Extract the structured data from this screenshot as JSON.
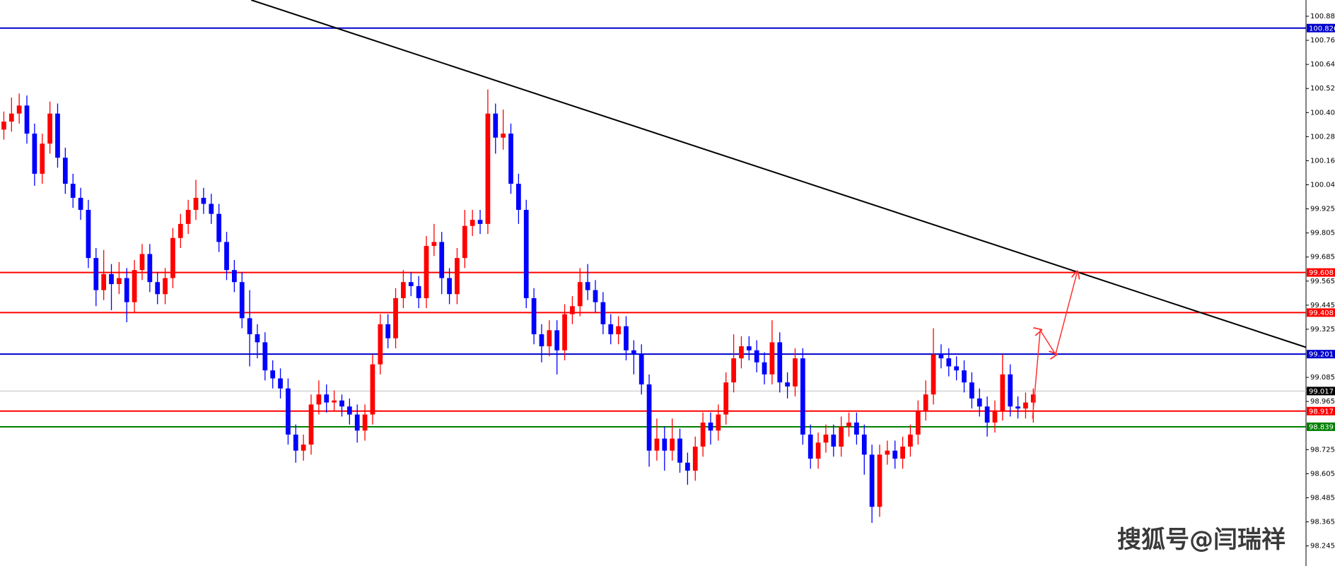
{
  "chart_data": {
    "type": "candlestick",
    "xlim": [
      0,
      170
    ],
    "ylim": [
      98.145,
      100.966
    ],
    "yticks": [
      100.885,
      100.765,
      100.645,
      100.525,
      100.405,
      100.285,
      100.165,
      100.045,
      99.925,
      99.805,
      99.685,
      99.565,
      99.445,
      99.325,
      99.085,
      98.965,
      98.725,
      98.605,
      98.485,
      98.365,
      98.245
    ],
    "up_color": "#ff0000",
    "down_color": "#0000ff",
    "open": [
      100.32,
      100.36,
      100.4,
      100.44,
      100.3,
      100.1,
      100.25,
      100.4,
      100.18,
      100.05,
      99.98,
      99.92,
      99.68,
      99.52,
      99.6,
      99.55,
      99.58,
      99.46,
      99.62,
      99.7,
      99.56,
      99.5,
      99.58,
      99.78,
      99.85,
      99.92,
      99.98,
      99.95,
      99.9,
      99.76,
      99.62,
      99.56,
      99.38,
      99.3,
      99.26,
      99.12,
      99.08,
      99.03,
      98.8,
      98.72,
      98.75,
      98.95,
      99.0,
      98.96,
      98.97,
      98.94,
      98.9,
      98.82,
      98.9,
      99.15,
      99.35,
      99.28,
      99.48,
      99.56,
      99.54,
      99.48,
      99.74,
      99.76,
      99.58,
      99.5,
      99.68,
      99.84,
      99.87,
      99.85,
      100.4,
      100.28,
      100.3,
      100.05,
      99.92,
      99.48,
      99.3,
      99.24,
      99.32,
      99.22,
      99.4,
      99.44,
      99.56,
      99.52,
      99.46,
      99.35,
      99.3,
      99.34,
      99.22,
      99.2,
      99.05,
      98.72,
      98.78,
      98.72,
      98.78,
      98.66,
      98.62,
      98.74,
      98.86,
      98.82,
      98.9,
      99.06,
      99.18,
      99.24,
      99.22,
      99.16,
      99.1,
      99.26,
      99.06,
      99.04,
      99.18,
      98.8,
      98.68,
      98.76,
      98.8,
      98.74,
      98.84,
      98.86,
      98.8,
      98.7,
      98.44,
      98.7,
      98.72,
      98.68,
      98.74,
      98.8,
      98.92,
      99.0,
      99.2,
      99.18,
      99.14,
      99.12,
      99.06,
      98.98,
      98.94,
      98.86,
      98.92,
      99.1,
      98.94,
      98.93,
      98.96
    ],
    "high": [
      100.41,
      100.48,
      100.5,
      100.49,
      100.35,
      100.3,
      100.46,
      100.45,
      100.23,
      100.1,
      100.03,
      99.97,
      99.73,
      99.72,
      99.65,
      99.66,
      99.63,
      99.67,
      99.75,
      99.75,
      99.61,
      99.63,
      99.83,
      99.9,
      99.97,
      100.07,
      100.03,
      100.0,
      99.95,
      99.81,
      99.67,
      99.61,
      99.52,
      99.35,
      99.31,
      99.17,
      99.13,
      99.08,
      98.85,
      98.8,
      99.0,
      99.07,
      99.05,
      99.02,
      99.0,
      98.98,
      98.95,
      98.95,
      99.2,
      99.4,
      99.4,
      99.53,
      99.62,
      99.61,
      99.59,
      99.79,
      99.85,
      99.81,
      99.63,
      99.73,
      99.92,
      99.92,
      99.92,
      100.52,
      100.45,
      100.42,
      100.35,
      100.1,
      99.97,
      99.53,
      99.35,
      99.37,
      99.37,
      99.45,
      99.49,
      99.63,
      99.65,
      99.57,
      99.51,
      99.4,
      99.39,
      99.39,
      99.27,
      99.25,
      99.1,
      98.88,
      98.84,
      98.88,
      98.83,
      98.71,
      98.79,
      98.91,
      98.91,
      98.95,
      99.11,
      99.3,
      99.29,
      99.29,
      99.27,
      99.21,
      99.37,
      99.31,
      99.11,
      99.23,
      99.23,
      98.85,
      98.81,
      98.85,
      98.85,
      98.89,
      98.91,
      98.91,
      98.85,
      98.75,
      98.75,
      98.77,
      98.77,
      98.79,
      98.85,
      98.97,
      99.07,
      99.33,
      99.25,
      99.23,
      99.19,
      99.17,
      99.11,
      99.03,
      98.99,
      98.97,
      99.2,
      99.15,
      98.99,
      99.01,
      99.03
    ],
    "low": [
      100.27,
      100.31,
      100.35,
      100.25,
      100.04,
      100.05,
      100.2,
      100.13,
      100.0,
      99.93,
      99.87,
      99.63,
      99.44,
      99.47,
      99.42,
      99.5,
      99.36,
      99.41,
      99.57,
      99.51,
      99.45,
      99.45,
      99.53,
      99.73,
      99.8,
      99.87,
      99.9,
      99.85,
      99.71,
      99.57,
      99.51,
      99.33,
      99.14,
      99.18,
      99.07,
      99.03,
      98.98,
      98.75,
      98.66,
      98.67,
      98.7,
      98.9,
      98.91,
      98.92,
      98.89,
      98.85,
      98.76,
      98.77,
      98.85,
      99.1,
      99.23,
      99.23,
      99.43,
      99.49,
      99.43,
      99.43,
      99.69,
      99.5,
      99.45,
      99.45,
      99.63,
      99.79,
      99.8,
      99.8,
      100.2,
      100.22,
      100.0,
      99.85,
      99.43,
      99.25,
      99.16,
      99.19,
      99.1,
      99.17,
      99.35,
      99.39,
      99.47,
      99.41,
      99.3,
      99.25,
      99.25,
      99.17,
      99.1,
      99.0,
      98.64,
      98.67,
      98.62,
      98.67,
      98.61,
      98.55,
      98.57,
      98.69,
      98.75,
      98.77,
      98.85,
      99.01,
      99.13,
      99.17,
      99.11,
      99.05,
      99.05,
      99.01,
      98.98,
      98.99,
      98.75,
      98.63,
      98.63,
      98.71,
      98.69,
      98.69,
      98.79,
      98.75,
      98.6,
      98.36,
      98.39,
      98.65,
      98.63,
      98.63,
      98.69,
      98.75,
      98.87,
      98.95,
      99.13,
      99.09,
      99.07,
      99.01,
      98.93,
      98.89,
      98.79,
      98.81,
      98.87,
      98.89,
      98.88,
      98.88,
      98.86
    ],
    "close": [
      100.36,
      100.4,
      100.44,
      100.3,
      100.1,
      100.25,
      100.4,
      100.18,
      100.05,
      99.98,
      99.92,
      99.68,
      99.52,
      99.6,
      99.55,
      99.58,
      99.46,
      99.62,
      99.7,
      99.56,
      99.5,
      99.58,
      99.78,
      99.85,
      99.92,
      99.98,
      99.95,
      99.9,
      99.76,
      99.62,
      99.56,
      99.38,
      99.3,
      99.26,
      99.12,
      99.08,
      99.03,
      98.8,
      98.72,
      98.75,
      98.95,
      99.0,
      98.96,
      98.97,
      98.94,
      98.9,
      98.82,
      98.9,
      99.15,
      99.35,
      99.28,
      99.48,
      99.56,
      99.54,
      99.48,
      99.74,
      99.76,
      99.58,
      99.5,
      99.68,
      99.84,
      99.87,
      99.85,
      100.4,
      100.28,
      100.3,
      100.05,
      99.92,
      99.48,
      99.3,
      99.24,
      99.32,
      99.22,
      99.4,
      99.44,
      99.56,
      99.52,
      99.46,
      99.35,
      99.3,
      99.34,
      99.22,
      99.2,
      99.05,
      98.72,
      98.78,
      98.72,
      98.78,
      98.66,
      98.62,
      98.74,
      98.86,
      98.82,
      98.9,
      99.06,
      99.18,
      99.24,
      99.22,
      99.16,
      99.1,
      99.26,
      99.06,
      99.04,
      99.18,
      98.8,
      98.68,
      98.76,
      98.8,
      98.74,
      98.84,
      98.86,
      98.8,
      98.7,
      98.44,
      98.7,
      98.72,
      98.68,
      98.74,
      98.8,
      98.92,
      99.0,
      99.2,
      99.18,
      99.14,
      99.12,
      99.06,
      98.98,
      98.94,
      98.86,
      98.92,
      99.1,
      98.94,
      98.93,
      98.96,
      99.0
    ],
    "levels": [
      {
        "value": 100.826,
        "color": "#0000cc"
      },
      {
        "value": 99.608,
        "color": "#ff0000"
      },
      {
        "value": 99.408,
        "color": "#ff0000"
      },
      {
        "value": 99.201,
        "color": "#0000cc"
      },
      {
        "value": 99.017,
        "color": "#c0c0c0"
      },
      {
        "value": 98.917,
        "color": "#ff0000"
      },
      {
        "value": 98.839,
        "color": "#008000"
      }
    ],
    "trendline": {
      "x": [
        32.7,
        170
      ],
      "y": [
        100.966,
        99.235
      ],
      "color": "#000000"
    },
    "projection": {
      "x": [
        134.4,
        135.4,
        137.4,
        140.2
      ],
      "y": [
        98.88,
        99.32,
        99.2,
        99.608
      ],
      "color": "#ff3030"
    },
    "watermark": "搜狐号@闫瑞祥"
  }
}
